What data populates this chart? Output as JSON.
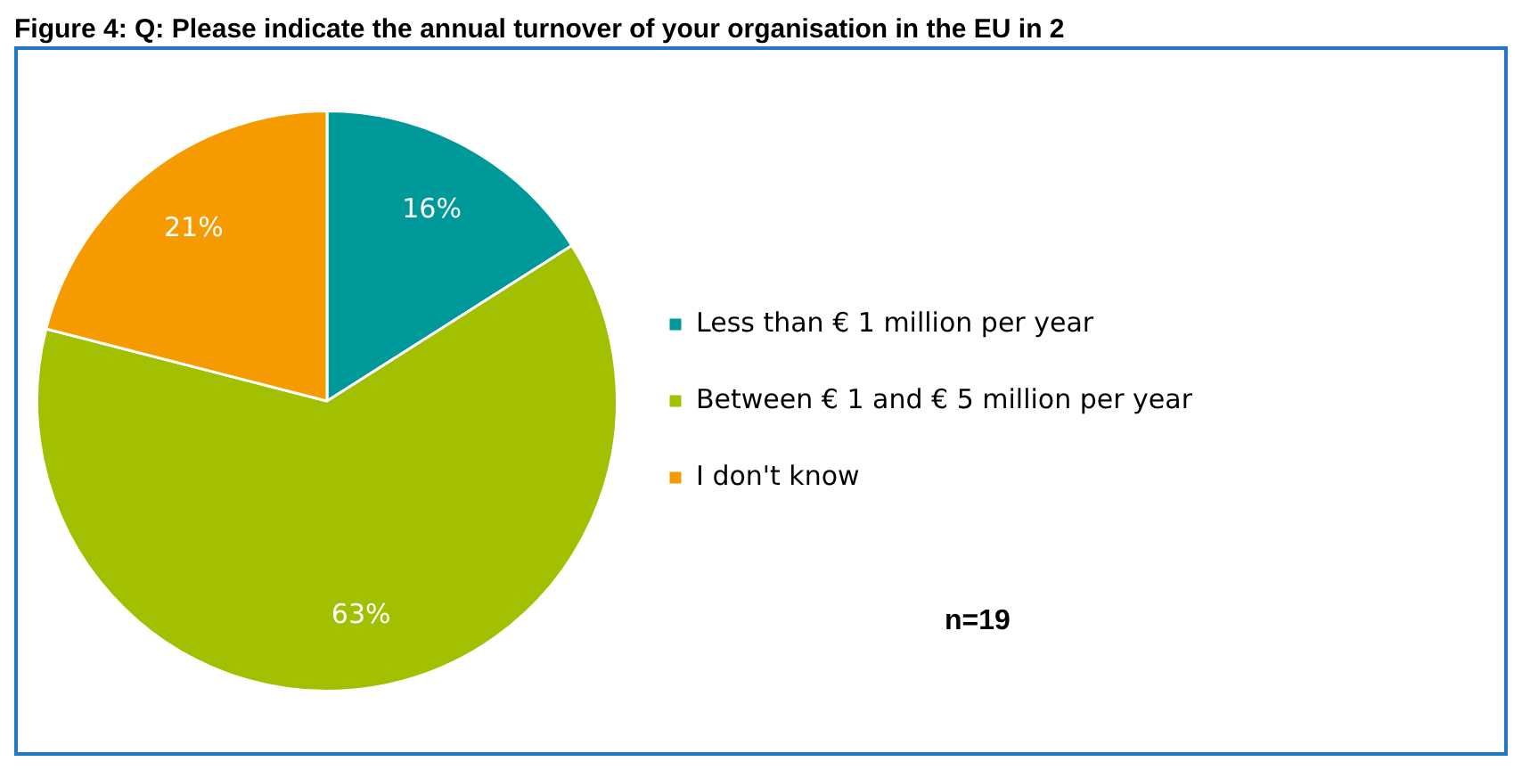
{
  "chart_data": {
    "type": "pie",
    "title": "Figure 4: Q: Please indicate the annual turnover of your organisation in the EU in 2",
    "categories": [
      "Less than € 1 million per year",
      "Between € 1 and € 5 million per year",
      "I don't know"
    ],
    "values": [
      16,
      63,
      21
    ],
    "colors": [
      "#009999",
      "#a2bf00",
      "#f59b00"
    ],
    "value_labels": [
      "16%",
      "63%",
      "21%"
    ],
    "legend": "right",
    "annotations": [
      "n=19"
    ]
  }
}
